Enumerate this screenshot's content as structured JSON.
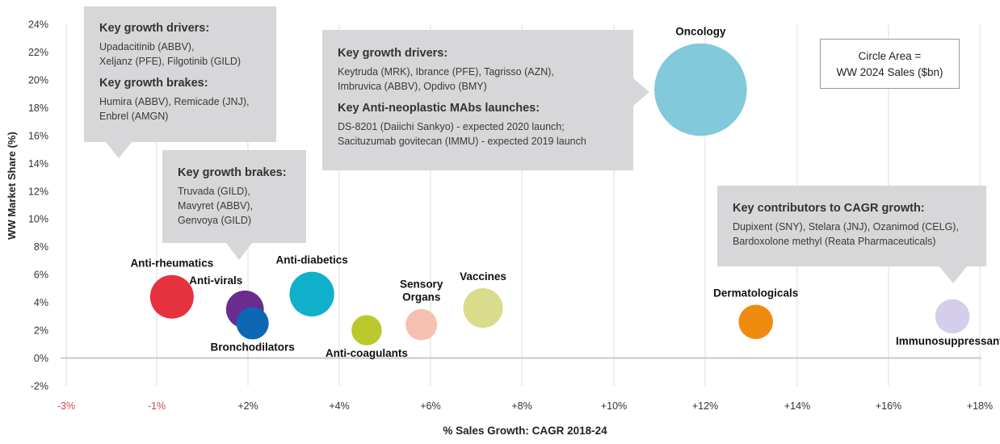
{
  "chart_data": {
    "type": "scatter",
    "subtype": "bubble",
    "title": "",
    "xlabel": "% Sales Growth: CAGR 2018-24",
    "ylabel": "WW Market Share (%)",
    "xlim": [
      -3,
      18
    ],
    "ylim": [
      -2,
      24
    ],
    "x_ticks": [
      -3,
      -1,
      2,
      4,
      6,
      8,
      10,
      12,
      14,
      16,
      18
    ],
    "x_tick_labels": [
      "-3%",
      "-1%",
      "+2%",
      "+4%",
      "+6%",
      "+8%",
      "+10%",
      "+12%",
      "+14%",
      "+16%",
      "+18%"
    ],
    "y_ticks": [
      -2,
      0,
      2,
      4,
      6,
      8,
      10,
      12,
      14,
      16,
      18,
      20,
      22,
      24
    ],
    "y_tick_labels": [
      "-2%",
      "0%",
      "2%",
      "4%",
      "6%",
      "8%",
      "10%",
      "12%",
      "14%",
      "16%",
      "18%",
      "20%",
      "22%",
      "24%"
    ],
    "grid": "vertical",
    "legend_note": "Circle Area =\nWW 2024 Sales ($bn)",
    "points": [
      {
        "name": "Anti-rheumatics",
        "x": -0.5,
        "y": 4.4,
        "size": 1.0,
        "color": "#e5323c",
        "label_pos": "top"
      },
      {
        "name": "Anti-virals",
        "x": 1.9,
        "y": 3.5,
        "size": 0.75,
        "color": "#6a2c8f",
        "label_pos": "top-left"
      },
      {
        "name": "Bronchodilators",
        "x": 2.1,
        "y": 2.5,
        "size": 0.55,
        "color": "#0c67b5",
        "label_pos": "bottom"
      },
      {
        "name": "Anti-diabetics",
        "x": 3.4,
        "y": 4.6,
        "size": 1.05,
        "color": "#0fb0cc",
        "label_pos": "top"
      },
      {
        "name": "Anti-coagulants",
        "x": 4.6,
        "y": 2.0,
        "size": 0.48,
        "color": "#bbc82c",
        "label_pos": "bottom"
      },
      {
        "name": "Sensory Organs",
        "x": 5.8,
        "y": 2.4,
        "size": 0.52,
        "color": "#f6c0b0",
        "label_pos": "top"
      },
      {
        "name": "Vaccines",
        "x": 7.15,
        "y": 3.6,
        "size": 0.82,
        "color": "#d9dc8a",
        "label_pos": "top"
      },
      {
        "name": "Oncology",
        "x": 11.9,
        "y": 19.3,
        "size": 4.5,
        "color": "#82c9dc",
        "label_pos": "top"
      },
      {
        "name": "Dermatologicals",
        "x": 13.1,
        "y": 2.6,
        "size": 0.62,
        "color": "#ef8b0e",
        "label_pos": "top"
      },
      {
        "name": "Immunosuppressants",
        "x": 17.4,
        "y": 3.0,
        "size": 0.62,
        "color": "#d4cdec",
        "label_pos": "bottom"
      }
    ]
  },
  "callouts": {
    "immunology": {
      "h1": "Key growth drivers:",
      "drivers": [
        "Upadacitinib (ABBV),",
        "Xeljanz (PFE), Filgotinib (GILD)"
      ],
      "h2": "Key growth brakes:",
      "brakes": [
        "Humira (ABBV), Remicade (JNJ),",
        "Enbrel (AMGN)"
      ]
    },
    "antiviral": {
      "h1": "Key growth brakes:",
      "lines": [
        "Truvada (GILD),",
        "Mavyret (ABBV),",
        "Genvoya (GILD)"
      ]
    },
    "oncology": {
      "h1": "Key growth drivers:",
      "drivers": [
        "Keytruda (MRK), Ibrance (PFE), Tagrisso (AZN),",
        "Imbruvica (ABBV), Opdivo (BMY)"
      ],
      "h2": "Key Anti-neoplastic MAbs launches:",
      "launches": [
        "DS-8201 (Daiichi Sankyo) - expected 2020 launch;",
        "Sacituzumab govitecan (IMMU) - expected 2019 launch"
      ]
    },
    "cagr": {
      "h1": "Key contributors to CAGR growth:",
      "lines": [
        "Dupixent (SNY), Stelara (JNJ), Ozanimod (CELG),",
        "Bardoxolone methyl (Reata Pharmaceuticals)"
      ]
    }
  },
  "colors": {
    "negative_tick": "#d2484a",
    "axis_text": "#333333",
    "grid": "#dedede",
    "callout_bg": "#d7d6d8"
  }
}
